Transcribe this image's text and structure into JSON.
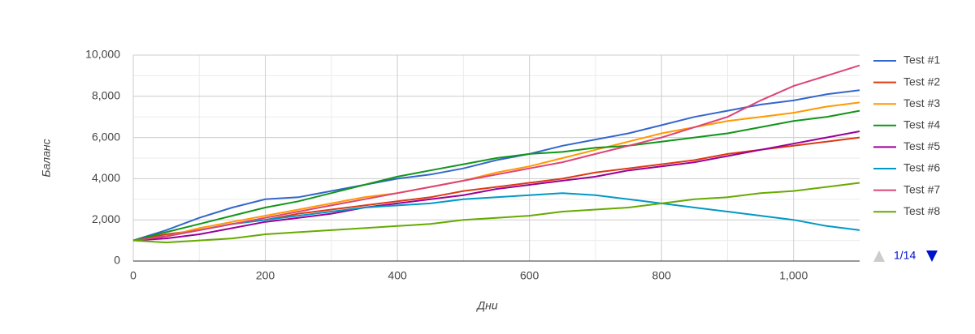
{
  "chart_data": {
    "type": "line",
    "x_label": "Дни",
    "y_label": "Баланс",
    "x": [
      0,
      50,
      100,
      150,
      200,
      250,
      300,
      350,
      400,
      450,
      500,
      550,
      600,
      650,
      700,
      750,
      800,
      850,
      900,
      950,
      1000,
      1050,
      1100
    ],
    "xlim": [
      0,
      1100
    ],
    "xticks": [
      0,
      200,
      400,
      600,
      800,
      {
        "value": 1000,
        "label": "1,000"
      }
    ],
    "xminorticks": [
      100,
      300,
      500,
      700,
      900
    ],
    "ylim": [
      0,
      10000
    ],
    "yticks": [
      0,
      {
        "value": 2000,
        "label": "2,000"
      },
      {
        "value": 4000,
        "label": "4,000"
      },
      {
        "value": 6000,
        "label": "6,000"
      },
      {
        "value": 8000,
        "label": "8,000"
      },
      {
        "value": 10000,
        "label": "10,000"
      }
    ],
    "yminorticks": [
      1000,
      3000,
      5000,
      7000,
      9000
    ],
    "grid": true,
    "legend": "right",
    "legend_page": "1/14",
    "series": [
      {
        "name": "Test #1",
        "color": "#3366cc",
        "values": [
          1000,
          1500,
          2100,
          2600,
          3000,
          3100,
          3400,
          3700,
          4000,
          4200,
          4500,
          4900,
          5200,
          5600,
          5900,
          6200,
          6600,
          7000,
          7300,
          7600,
          7800,
          8100,
          8300
        ]
      },
      {
        "name": "Test #2",
        "color": "#dc3912",
        "values": [
          1000,
          1300,
          1500,
          1800,
          2000,
          2300,
          2500,
          2700,
          2900,
          3100,
          3400,
          3600,
          3800,
          4000,
          4300,
          4500,
          4700,
          4900,
          5200,
          5400,
          5600,
          5800,
          6000
        ]
      },
      {
        "name": "Test #3",
        "color": "#ff9900",
        "values": [
          1000,
          1200,
          1600,
          1900,
          2200,
          2500,
          2800,
          3100,
          3300,
          3600,
          3900,
          4300,
          4600,
          5000,
          5400,
          5800,
          6200,
          6500,
          6800,
          7000,
          7200,
          7500,
          7700
        ]
      },
      {
        "name": "Test #4",
        "color": "#109618",
        "values": [
          1000,
          1400,
          1800,
          2200,
          2600,
          2900,
          3300,
          3700,
          4100,
          4400,
          4700,
          5000,
          5200,
          5300,
          5500,
          5600,
          5800,
          6000,
          6200,
          6500,
          6800,
          7000,
          7300
        ]
      },
      {
        "name": "Test #5",
        "color": "#990099",
        "values": [
          1000,
          1100,
          1300,
          1600,
          1900,
          2100,
          2300,
          2600,
          2800,
          3000,
          3200,
          3500,
          3700,
          3900,
          4100,
          4400,
          4600,
          4800,
          5100,
          5400,
          5700,
          6000,
          6300
        ]
      },
      {
        "name": "Test #6",
        "color": "#0099c6",
        "values": [
          1000,
          1200,
          1500,
          1800,
          2000,
          2200,
          2400,
          2600,
          2700,
          2800,
          3000,
          3100,
          3200,
          3300,
          3200,
          3000,
          2800,
          2600,
          2400,
          2200,
          2000,
          1700,
          1500
        ]
      },
      {
        "name": "Test #7",
        "color": "#dd4477",
        "values": [
          1000,
          1200,
          1500,
          1800,
          2100,
          2400,
          2700,
          3000,
          3300,
          3600,
          3900,
          4200,
          4500,
          4800,
          5200,
          5600,
          6000,
          6500,
          7000,
          7800,
          8500,
          9000,
          9500
        ]
      },
      {
        "name": "Test #8",
        "color": "#66aa00",
        "values": [
          1000,
          900,
          1000,
          1100,
          1300,
          1400,
          1500,
          1600,
          1700,
          1800,
          2000,
          2100,
          2200,
          2400,
          2500,
          2600,
          2800,
          3000,
          3100,
          3300,
          3400,
          3600,
          3800
        ]
      }
    ]
  }
}
